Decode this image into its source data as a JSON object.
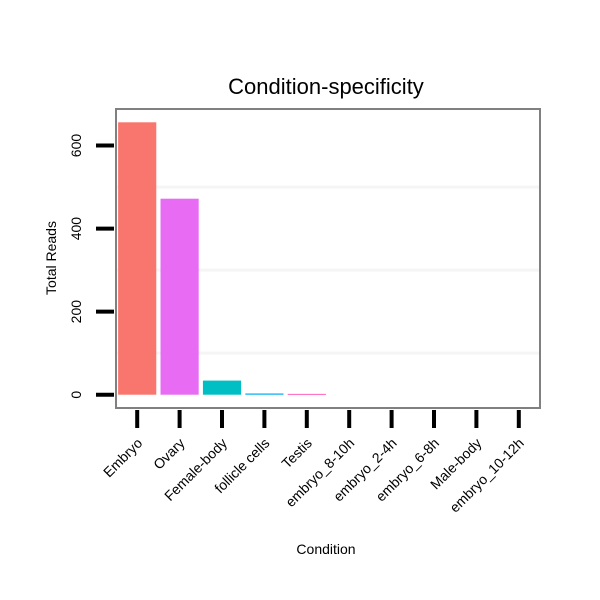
{
  "chart_data": {
    "type": "bar",
    "title": "Condition-specificity",
    "xlabel": "Condition",
    "ylabel": "Total Reads",
    "categories": [
      "Embryo",
      "Ovary",
      "Female-body",
      "follicle cells",
      "Testis",
      "embryo_8-10h",
      "embryo_2-4h",
      "embryo_6-8h",
      "Male-body",
      "embryo_10-12h"
    ],
    "values": [
      656,
      472,
      34,
      3,
      2,
      0,
      0,
      0,
      0,
      0
    ],
    "bar_colors": [
      "#F8766D",
      "#E76BF3",
      "#00BFC4",
      "#00B0F6",
      "#FF62BC",
      "#7CAE00",
      "#A3A500",
      "#39B600",
      "#00BF7D",
      "#D89000"
    ],
    "yticks": [
      0,
      200,
      400,
      600
    ],
    "ylim": [
      -32,
      688
    ],
    "grid": true,
    "legend": "none"
  },
  "colors": {
    "panel_border": "#808080",
    "gridline": "#f5f5f5",
    "tick": "#000000"
  }
}
